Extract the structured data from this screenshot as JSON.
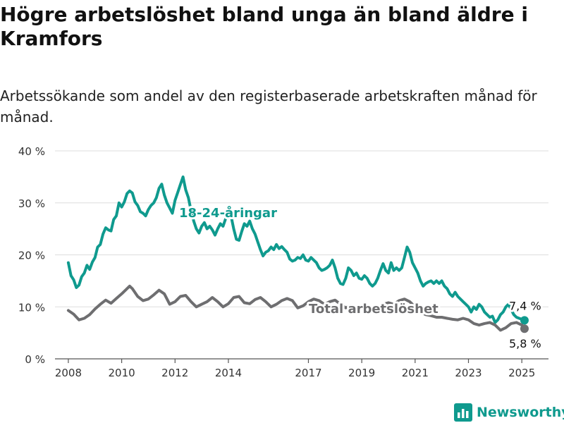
{
  "title": "Högre arbetslöshet bland unga än bland äldre i Kramfors",
  "subtitle": "Arbetssökande som andel av den registerbaserade arbetskraften månad för månad.",
  "brand": {
    "name": "Newsworthy"
  },
  "colors": {
    "youth": "#0f9a8e",
    "total": "#6e6e70",
    "grid": "#dddddd",
    "axis": "#555555"
  },
  "chart_data": {
    "type": "line",
    "ylim": [
      0,
      40
    ],
    "y_ticks": [
      {
        "value": 0,
        "label": "0 %"
      },
      {
        "value": 10,
        "label": "10 %"
      },
      {
        "value": 20,
        "label": "20 %"
      },
      {
        "value": 30,
        "label": "30 %"
      },
      {
        "value": 40,
        "label": "40 %"
      }
    ],
    "xlim": [
      2007.5,
      2026.0
    ],
    "x_ticks": [
      {
        "value": 2008,
        "label": "2008"
      },
      {
        "value": 2010,
        "label": "2010"
      },
      {
        "value": 2012,
        "label": "2012"
      },
      {
        "value": 2014,
        "label": "2014"
      },
      {
        "value": 2017,
        "label": "2017"
      },
      {
        "value": 2019,
        "label": "2019"
      },
      {
        "value": 2021,
        "label": "2021"
      },
      {
        "value": 2023,
        "label": "2023"
      },
      {
        "value": 2025,
        "label": "2025"
      }
    ],
    "grid": true,
    "series": [
      {
        "name": "18-24-åringar",
        "color_key": "youth",
        "end_label": "7,4 %",
        "points": [
          [
            2008.0,
            18.5
          ],
          [
            2008.1,
            16.0
          ],
          [
            2008.2,
            15.2
          ],
          [
            2008.3,
            13.7
          ],
          [
            2008.4,
            14.2
          ],
          [
            2008.5,
            15.8
          ],
          [
            2008.6,
            16.5
          ],
          [
            2008.7,
            18.0
          ],
          [
            2008.8,
            17.2
          ],
          [
            2008.9,
            18.6
          ],
          [
            2009.0,
            19.5
          ],
          [
            2009.1,
            21.5
          ],
          [
            2009.2,
            22.0
          ],
          [
            2009.3,
            24.0
          ],
          [
            2009.4,
            25.2
          ],
          [
            2009.5,
            24.8
          ],
          [
            2009.6,
            24.6
          ],
          [
            2009.7,
            26.8
          ],
          [
            2009.8,
            27.5
          ],
          [
            2009.9,
            30.0
          ],
          [
            2010.0,
            29.2
          ],
          [
            2010.1,
            30.2
          ],
          [
            2010.2,
            31.8
          ],
          [
            2010.3,
            32.3
          ],
          [
            2010.4,
            31.9
          ],
          [
            2010.5,
            30.2
          ],
          [
            2010.6,
            29.5
          ],
          [
            2010.7,
            28.3
          ],
          [
            2010.8,
            28.0
          ],
          [
            2010.9,
            27.5
          ],
          [
            2011.0,
            28.7
          ],
          [
            2011.1,
            29.5
          ],
          [
            2011.2,
            30.0
          ],
          [
            2011.3,
            31.0
          ],
          [
            2011.4,
            32.8
          ],
          [
            2011.5,
            33.6
          ],
          [
            2011.6,
            31.5
          ],
          [
            2011.7,
            30.0
          ],
          [
            2011.8,
            29.0
          ],
          [
            2011.9,
            28.0
          ],
          [
            2012.0,
            30.5
          ],
          [
            2012.1,
            32.0
          ],
          [
            2012.2,
            33.5
          ],
          [
            2012.3,
            35.0
          ],
          [
            2012.4,
            32.5
          ],
          [
            2012.5,
            31.0
          ],
          [
            2012.6,
            28.5
          ],
          [
            2012.7,
            26.5
          ],
          [
            2012.8,
            25.0
          ],
          [
            2012.9,
            24.2
          ],
          [
            2013.0,
            25.5
          ],
          [
            2013.1,
            26.2
          ],
          [
            2013.2,
            25.0
          ],
          [
            2013.3,
            25.5
          ],
          [
            2013.4,
            24.8
          ],
          [
            2013.5,
            23.8
          ],
          [
            2013.6,
            25.0
          ],
          [
            2013.7,
            26.0
          ],
          [
            2013.8,
            25.5
          ],
          [
            2013.9,
            27.0
          ],
          [
            2014.0,
            28.0
          ],
          [
            2014.1,
            27.5
          ],
          [
            2014.2,
            25.0
          ],
          [
            2014.3,
            23.0
          ],
          [
            2014.4,
            22.8
          ],
          [
            2014.5,
            24.5
          ],
          [
            2014.6,
            26.0
          ],
          [
            2014.7,
            25.5
          ],
          [
            2014.8,
            26.5
          ],
          [
            2014.9,
            25.0
          ],
          [
            2015.0,
            24.0
          ],
          [
            2015.1,
            22.5
          ],
          [
            2015.2,
            21.0
          ],
          [
            2015.3,
            19.8
          ],
          [
            2015.4,
            20.5
          ],
          [
            2015.5,
            20.8
          ],
          [
            2015.6,
            21.5
          ],
          [
            2015.7,
            21.0
          ],
          [
            2015.8,
            22.0
          ],
          [
            2015.9,
            21.2
          ],
          [
            2016.0,
            21.6
          ],
          [
            2016.1,
            21.0
          ],
          [
            2016.2,
            20.5
          ],
          [
            2016.3,
            19.2
          ],
          [
            2016.4,
            18.8
          ],
          [
            2016.5,
            19.0
          ],
          [
            2016.6,
            19.5
          ],
          [
            2016.7,
            19.3
          ],
          [
            2016.8,
            20.0
          ],
          [
            2016.9,
            19.0
          ],
          [
            2017.0,
            18.8
          ],
          [
            2017.1,
            19.5
          ],
          [
            2017.2,
            19.0
          ],
          [
            2017.3,
            18.5
          ],
          [
            2017.4,
            17.5
          ],
          [
            2017.5,
            17.0
          ],
          [
            2017.6,
            17.2
          ],
          [
            2017.7,
            17.5
          ],
          [
            2017.8,
            18.0
          ],
          [
            2017.9,
            19.0
          ],
          [
            2018.0,
            17.5
          ],
          [
            2018.1,
            15.5
          ],
          [
            2018.2,
            14.5
          ],
          [
            2018.3,
            14.3
          ],
          [
            2018.4,
            15.5
          ],
          [
            2018.5,
            17.5
          ],
          [
            2018.6,
            17.0
          ],
          [
            2018.7,
            16.0
          ],
          [
            2018.8,
            16.5
          ],
          [
            2018.9,
            15.5
          ],
          [
            2019.0,
            15.3
          ],
          [
            2019.1,
            16.0
          ],
          [
            2019.2,
            15.5
          ],
          [
            2019.3,
            14.5
          ],
          [
            2019.4,
            14.0
          ],
          [
            2019.5,
            14.5
          ],
          [
            2019.6,
            15.5
          ],
          [
            2019.7,
            17.0
          ],
          [
            2019.8,
            18.3
          ],
          [
            2019.9,
            17.0
          ],
          [
            2020.0,
            16.5
          ],
          [
            2020.1,
            18.5
          ],
          [
            2020.2,
            17.0
          ],
          [
            2020.3,
            17.5
          ],
          [
            2020.4,
            17.0
          ],
          [
            2020.5,
            17.5
          ],
          [
            2020.6,
            19.5
          ],
          [
            2020.7,
            21.5
          ],
          [
            2020.8,
            20.5
          ],
          [
            2020.9,
            18.5
          ],
          [
            2021.0,
            17.5
          ],
          [
            2021.1,
            16.5
          ],
          [
            2021.2,
            15.0
          ],
          [
            2021.3,
            14.0
          ],
          [
            2021.4,
            14.5
          ],
          [
            2021.5,
            14.8
          ],
          [
            2021.6,
            15.0
          ],
          [
            2021.7,
            14.5
          ],
          [
            2021.8,
            15.0
          ],
          [
            2021.9,
            14.5
          ],
          [
            2022.0,
            15.0
          ],
          [
            2022.1,
            14.0
          ],
          [
            2022.2,
            13.5
          ],
          [
            2022.3,
            12.5
          ],
          [
            2022.4,
            12.0
          ],
          [
            2022.5,
            12.8
          ],
          [
            2022.6,
            12.0
          ],
          [
            2022.7,
            11.5
          ],
          [
            2022.8,
            11.0
          ],
          [
            2022.9,
            10.5
          ],
          [
            2023.0,
            10.0
          ],
          [
            2023.1,
            9.0
          ],
          [
            2023.2,
            10.0
          ],
          [
            2023.3,
            9.5
          ],
          [
            2023.4,
            10.5
          ],
          [
            2023.5,
            10.0
          ],
          [
            2023.6,
            9.0
          ],
          [
            2023.7,
            8.5
          ],
          [
            2023.8,
            8.0
          ],
          [
            2023.9,
            8.2
          ],
          [
            2024.0,
            7.0
          ],
          [
            2024.1,
            7.5
          ],
          [
            2024.2,
            8.5
          ],
          [
            2024.3,
            9.0
          ],
          [
            2024.4,
            10.0
          ],
          [
            2024.5,
            10.5
          ],
          [
            2024.6,
            9.5
          ],
          [
            2024.7,
            8.5
          ],
          [
            2024.8,
            8.0
          ],
          [
            2024.9,
            7.8
          ],
          [
            2025.0,
            7.6
          ],
          [
            2025.1,
            7.4
          ]
        ]
      },
      {
        "name": "Total arbetslöshet",
        "color_key": "total",
        "end_label": "5,8 %",
        "points": [
          [
            2008.0,
            9.3
          ],
          [
            2008.2,
            8.6
          ],
          [
            2008.4,
            7.5
          ],
          [
            2008.6,
            7.8
          ],
          [
            2008.8,
            8.5
          ],
          [
            2009.0,
            9.6
          ],
          [
            2009.2,
            10.5
          ],
          [
            2009.4,
            11.3
          ],
          [
            2009.6,
            10.7
          ],
          [
            2009.8,
            11.6
          ],
          [
            2010.0,
            12.5
          ],
          [
            2010.2,
            13.5
          ],
          [
            2010.3,
            14.0
          ],
          [
            2010.4,
            13.5
          ],
          [
            2010.6,
            12.0
          ],
          [
            2010.8,
            11.2
          ],
          [
            2011.0,
            11.5
          ],
          [
            2011.2,
            12.3
          ],
          [
            2011.4,
            13.2
          ],
          [
            2011.6,
            12.5
          ],
          [
            2011.8,
            10.5
          ],
          [
            2012.0,
            11.0
          ],
          [
            2012.2,
            12.0
          ],
          [
            2012.4,
            12.2
          ],
          [
            2012.6,
            11.0
          ],
          [
            2012.8,
            10.0
          ],
          [
            2013.0,
            10.5
          ],
          [
            2013.2,
            11.0
          ],
          [
            2013.4,
            11.8
          ],
          [
            2013.6,
            11.0
          ],
          [
            2013.8,
            10.0
          ],
          [
            2014.0,
            10.6
          ],
          [
            2014.2,
            11.8
          ],
          [
            2014.4,
            12.0
          ],
          [
            2014.6,
            10.8
          ],
          [
            2014.8,
            10.6
          ],
          [
            2015.0,
            11.4
          ],
          [
            2015.2,
            11.8
          ],
          [
            2015.4,
            11.0
          ],
          [
            2015.6,
            10.0
          ],
          [
            2015.8,
            10.5
          ],
          [
            2016.0,
            11.2
          ],
          [
            2016.2,
            11.6
          ],
          [
            2016.4,
            11.2
          ],
          [
            2016.6,
            9.8
          ],
          [
            2016.8,
            10.2
          ],
          [
            2017.0,
            11.0
          ],
          [
            2017.2,
            11.5
          ],
          [
            2017.4,
            11.2
          ],
          [
            2017.6,
            10.5
          ],
          [
            2017.8,
            11.0
          ],
          [
            2018.0,
            11.3
          ],
          [
            2018.2,
            10.5
          ],
          [
            2018.4,
            9.8
          ],
          [
            2018.6,
            10.3
          ],
          [
            2018.8,
            10.0
          ],
          [
            2019.0,
            9.8
          ],
          [
            2019.2,
            10.0
          ],
          [
            2019.4,
            9.5
          ],
          [
            2019.6,
            9.7
          ],
          [
            2019.8,
            10.5
          ],
          [
            2020.0,
            10.8
          ],
          [
            2020.2,
            10.5
          ],
          [
            2020.4,
            11.2
          ],
          [
            2020.6,
            11.5
          ],
          [
            2020.8,
            11.0
          ],
          [
            2021.0,
            10.0
          ],
          [
            2021.2,
            9.0
          ],
          [
            2021.4,
            8.5
          ],
          [
            2021.6,
            8.3
          ],
          [
            2021.8,
            8.0
          ],
          [
            2022.0,
            8.0
          ],
          [
            2022.2,
            7.8
          ],
          [
            2022.4,
            7.6
          ],
          [
            2022.6,
            7.5
          ],
          [
            2022.8,
            7.8
          ],
          [
            2023.0,
            7.5
          ],
          [
            2023.2,
            6.8
          ],
          [
            2023.4,
            6.5
          ],
          [
            2023.6,
            6.8
          ],
          [
            2023.8,
            7.0
          ],
          [
            2024.0,
            6.5
          ],
          [
            2024.2,
            5.5
          ],
          [
            2024.4,
            6.0
          ],
          [
            2024.6,
            6.8
          ],
          [
            2024.8,
            7.0
          ],
          [
            2025.0,
            6.5
          ],
          [
            2025.1,
            5.8
          ]
        ]
      }
    ]
  }
}
